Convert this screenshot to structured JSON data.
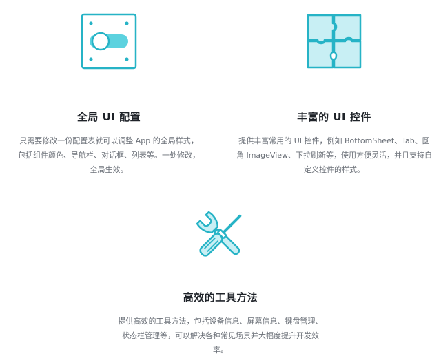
{
  "features": [
    {
      "title": "全局 UI 配置",
      "desc": "只需要修改一份配置表就可以调整 App 的全局样式，包括组件颜色、导航栏、对话框、列表等。一处修改，全局生效。",
      "icon": "toggle-switch-panel-icon"
    },
    {
      "title": "丰富的 UI 控件",
      "desc": "提供丰富常用的 UI 控件，例如 BottomSheet、Tab、圆角 ImageView、下拉刷新等，使用方便灵活，并且支持自定义控件的样式。",
      "icon": "puzzle-pieces-icon"
    },
    {
      "title": "高效的工具方法",
      "desc": "提供高效的工具方法，包括设备信息、屏幕信息、键盘管理、状态栏管理等，可以解决各种常见场景并大幅度提升开发效率。",
      "icon": "wrench-screwdriver-icon"
    }
  ],
  "colors": {
    "icon_stroke": "#26b3c6",
    "icon_fill": "#c8eff4",
    "title": "#1f2329",
    "desc": "#6a6f77"
  }
}
